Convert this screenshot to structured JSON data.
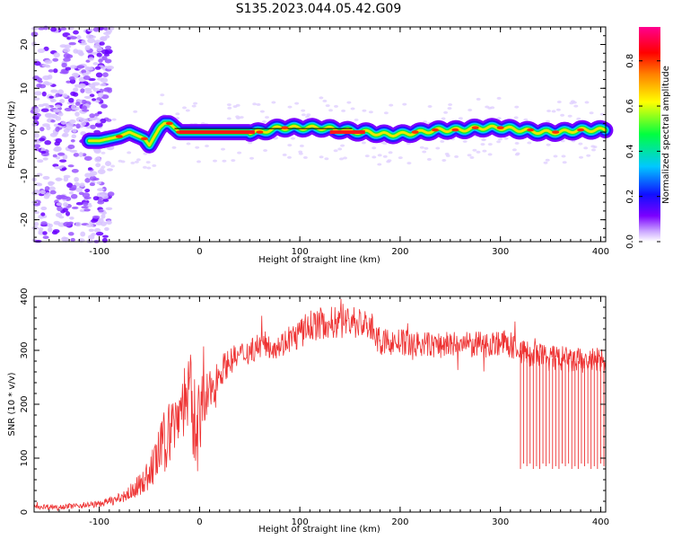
{
  "title": "S135.2023.044.05.42.G09",
  "chart_data": [
    {
      "type": "heatmap",
      "xlabel": "Height of straight line (km)",
      "ylabel": "Frequency (Hz)",
      "xlim": [
        -165,
        405
      ],
      "ylim": [
        -25,
        24
      ],
      "xticks": [
        -100,
        0,
        100,
        200,
        300,
        400
      ],
      "yticks": [
        -20,
        -10,
        0,
        10,
        20
      ],
      "grid": false,
      "colorbar": {
        "label": "Normalized spectral amplitude",
        "ticks": [
          "0.0",
          "0.2",
          "0.4",
          "0.6",
          "0.8"
        ],
        "range": [
          0,
          1
        ],
        "colors": [
          "#ffffff",
          "#7b00ff",
          "#0000ff",
          "#00c8ff",
          "#00ff00",
          "#ffff00",
          "#ff8000",
          "#ff0000",
          "#ff0090"
        ]
      },
      "signal_ridge": {
        "description_free_trace": true,
        "x": [
          -110,
          -100,
          -90,
          -80,
          -70,
          -60,
          -55,
          -50,
          -45,
          -40,
          -35,
          -30,
          -25,
          -20,
          0,
          20,
          40,
          60,
          70,
          80,
          100,
          120,
          140,
          160,
          170,
          180,
          200,
          220,
          240,
          260,
          280,
          300,
          320,
          340,
          360,
          380,
          400
        ],
        "y": [
          -2,
          -2,
          -1.5,
          -1,
          0,
          -1,
          -1.5,
          -3,
          -1,
          1,
          2,
          2,
          1,
          0,
          0,
          0,
          0,
          0,
          0.5,
          1,
          1,
          1,
          0.5,
          0,
          0,
          -0.5,
          -0.5,
          0,
          0.5,
          0.5,
          1,
          1,
          0.5,
          0,
          0,
          0.5,
          0.5
        ]
      },
      "noise_region_x": [
        -165,
        -100
      ]
    },
    {
      "type": "line",
      "xlabel": "Height of straight line (km)",
      "ylabel": "SNR (10 * v/v)",
      "xlim": [
        -165,
        405
      ],
      "ylim": [
        0,
        400
      ],
      "xticks": [
        -100,
        0,
        100,
        200,
        300,
        400
      ],
      "yticks": [
        0,
        100,
        200,
        300,
        400
      ],
      "grid": false,
      "series": [
        {
          "color": "#ee3333",
          "x": [
            -165,
            -140,
            -120,
            -100,
            -90,
            -80,
            -70,
            -60,
            -50,
            -45,
            -40,
            -35,
            -30,
            -25,
            -20,
            -15,
            -10,
            -5,
            0,
            5,
            10,
            15,
            20,
            30,
            40,
            50,
            60,
            70,
            80,
            90,
            100,
            110,
            120,
            130,
            140,
            150,
            160,
            170,
            180,
            200,
            220,
            240,
            260,
            280,
            300,
            310,
            320,
            330,
            340,
            350,
            360,
            370,
            380,
            390,
            400,
            405
          ],
          "y": [
            10,
            10,
            12,
            15,
            20,
            25,
            35,
            50,
            70,
            90,
            110,
            130,
            150,
            170,
            190,
            210,
            220,
            160,
            170,
            200,
            220,
            240,
            260,
            280,
            290,
            300,
            310,
            310,
            310,
            320,
            330,
            345,
            350,
            350,
            355,
            355,
            350,
            345,
            315,
            315,
            310,
            310,
            310,
            310,
            315,
            310,
            300,
            290,
            290,
            285,
            285,
            280,
            280,
            280,
            280,
            280
          ],
          "spread": [
            5,
            5,
            5,
            6,
            8,
            10,
            15,
            20,
            30,
            40,
            50,
            60,
            60,
            60,
            60,
            70,
            80,
            100,
            90,
            60,
            40,
            35,
            30,
            25,
            25,
            25,
            25,
            25,
            25,
            25,
            30,
            30,
            30,
            30,
            35,
            35,
            30,
            30,
            25,
            25,
            25,
            25,
            25,
            25,
            25,
            25,
            25,
            25,
            25,
            25,
            25,
            25,
            25,
            25,
            25,
            25
          ]
        }
      ],
      "dropouts": {
        "x_start": 320,
        "x_end": 405,
        "low_values": [
          80,
          90,
          85,
          90,
          80,
          85
        ]
      }
    }
  ]
}
